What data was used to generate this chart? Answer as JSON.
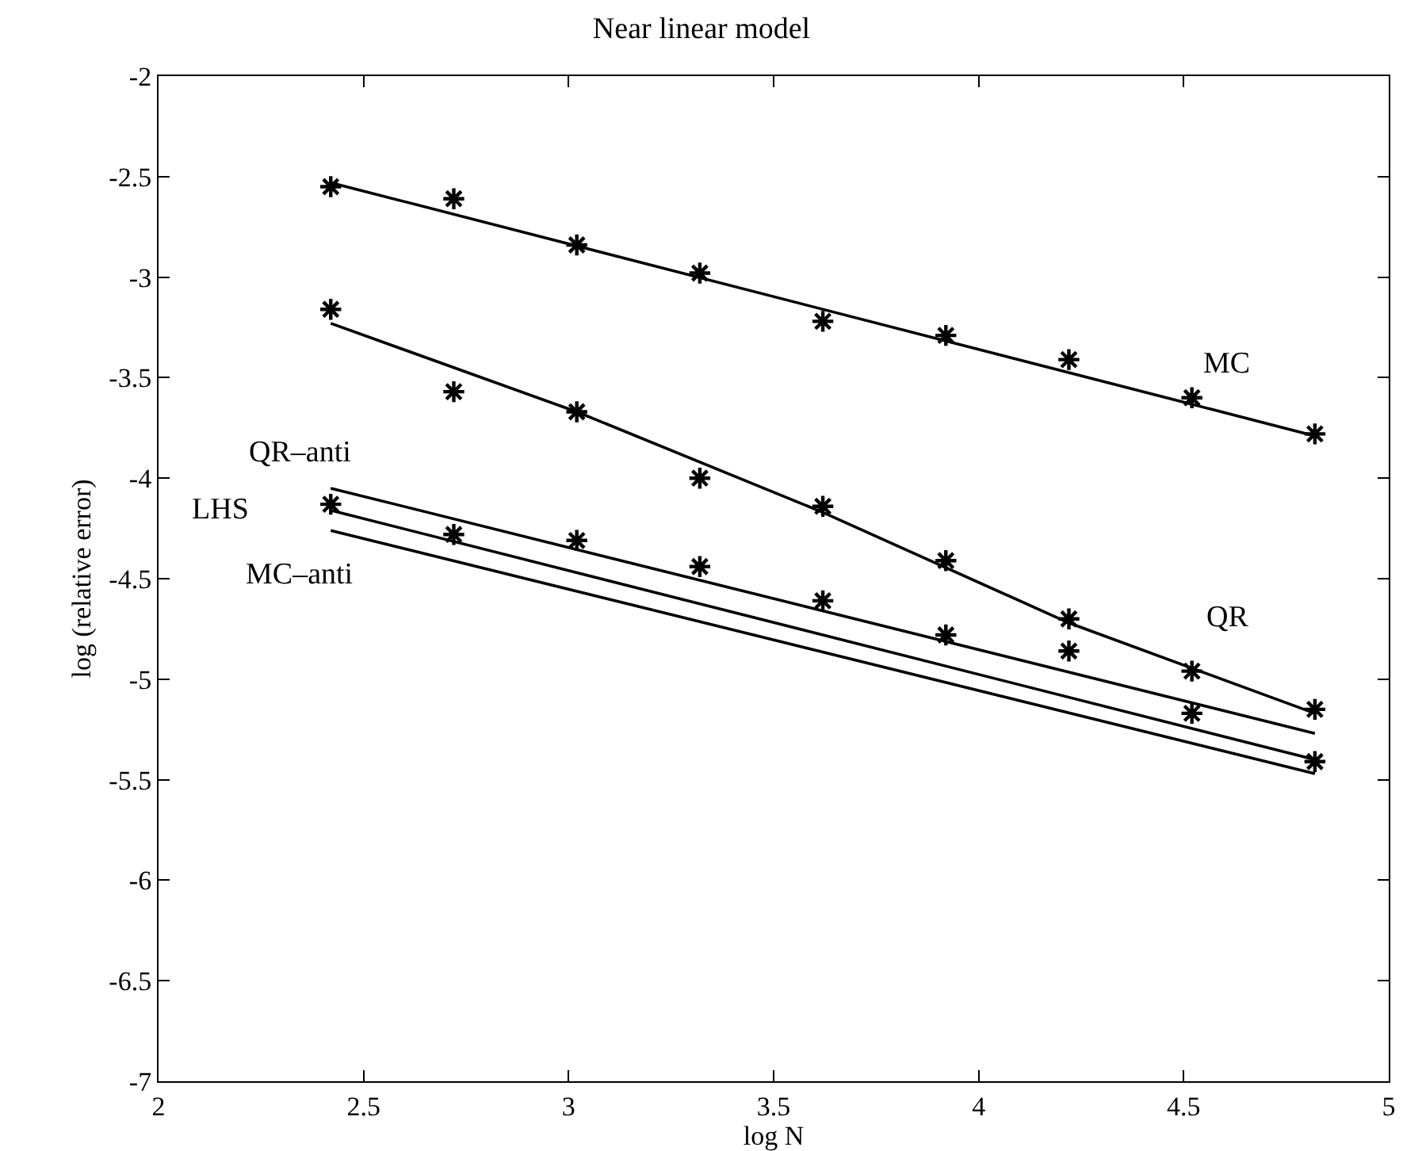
{
  "chart_data": {
    "type": "scatter",
    "title": "Near linear model",
    "xlabel": "log N",
    "ylabel": "log (relative error)",
    "xlim": [
      2,
      5
    ],
    "xticks": [
      2,
      2.5,
      3,
      3.5,
      4,
      4.5,
      5
    ],
    "ylim": [
      -7,
      -2
    ],
    "yticks": [
      -7,
      -6.5,
      -6,
      -5.5,
      -5,
      -4.5,
      -4,
      -3.5,
      -3,
      -2.5,
      -2
    ],
    "legend": false,
    "marker": "cross",
    "series": [
      {
        "color": "#000000",
        "x": [
          2.42,
          2.72,
          3.02,
          3.32,
          3.62,
          3.92,
          4.22,
          4.52,
          4.82
        ],
        "values": [
          -2.55,
          -2.61,
          -2.84,
          -2.98,
          -3.22,
          -3.29,
          -3.41,
          -3.6,
          -3.78
        ]
      },
      {
        "color": "#000000",
        "x": [
          2.42,
          2.72,
          3.02,
          3.32,
          3.62,
          3.92,
          4.22,
          4.52,
          4.82
        ],
        "values": [
          -3.16,
          -3.57,
          -3.67,
          -4.0,
          -4.14,
          -4.41,
          -4.7,
          -4.96,
          -5.15
        ]
      },
      {
        "color": "#000000",
        "x": [
          2.42,
          2.72,
          3.02,
          3.32,
          3.62,
          3.92,
          4.22,
          4.52,
          4.82
        ],
        "values": [
          -4.13,
          -4.28,
          -4.31,
          -4.44,
          -4.61,
          -4.78,
          -4.86,
          -5.17,
          -5.41
        ]
      },
      {
        "type": "line",
        "name": "MC",
        "color": "#000000",
        "marker": "none",
        "x": [
          2.42,
          4.82
        ],
        "values": [
          -2.53,
          -3.79
        ]
      },
      {
        "type": "line",
        "name": "QR",
        "color": "#000000",
        "marker": "none",
        "x": [
          2.42,
          3.02,
          3.62,
          4.22,
          4.82
        ],
        "values": [
          -3.23,
          -3.67,
          -4.17,
          -4.72,
          -5.17
        ]
      },
      {
        "type": "line",
        "name": "QR–anti",
        "color": "#000000",
        "marker": "none",
        "x": [
          2.42,
          4.82
        ],
        "values": [
          -4.05,
          -5.27
        ]
      },
      {
        "type": "line",
        "name": "LHS",
        "color": "#000000",
        "marker": "none",
        "x": [
          2.42,
          4.82
        ],
        "values": [
          -4.16,
          -5.4
        ]
      },
      {
        "type": "line",
        "name": "MC–anti",
        "color": "#000000",
        "marker": "none",
        "x": [
          2.42,
          4.82
        ],
        "values": [
          -4.26,
          -5.47
        ]
      }
    ]
  }
}
